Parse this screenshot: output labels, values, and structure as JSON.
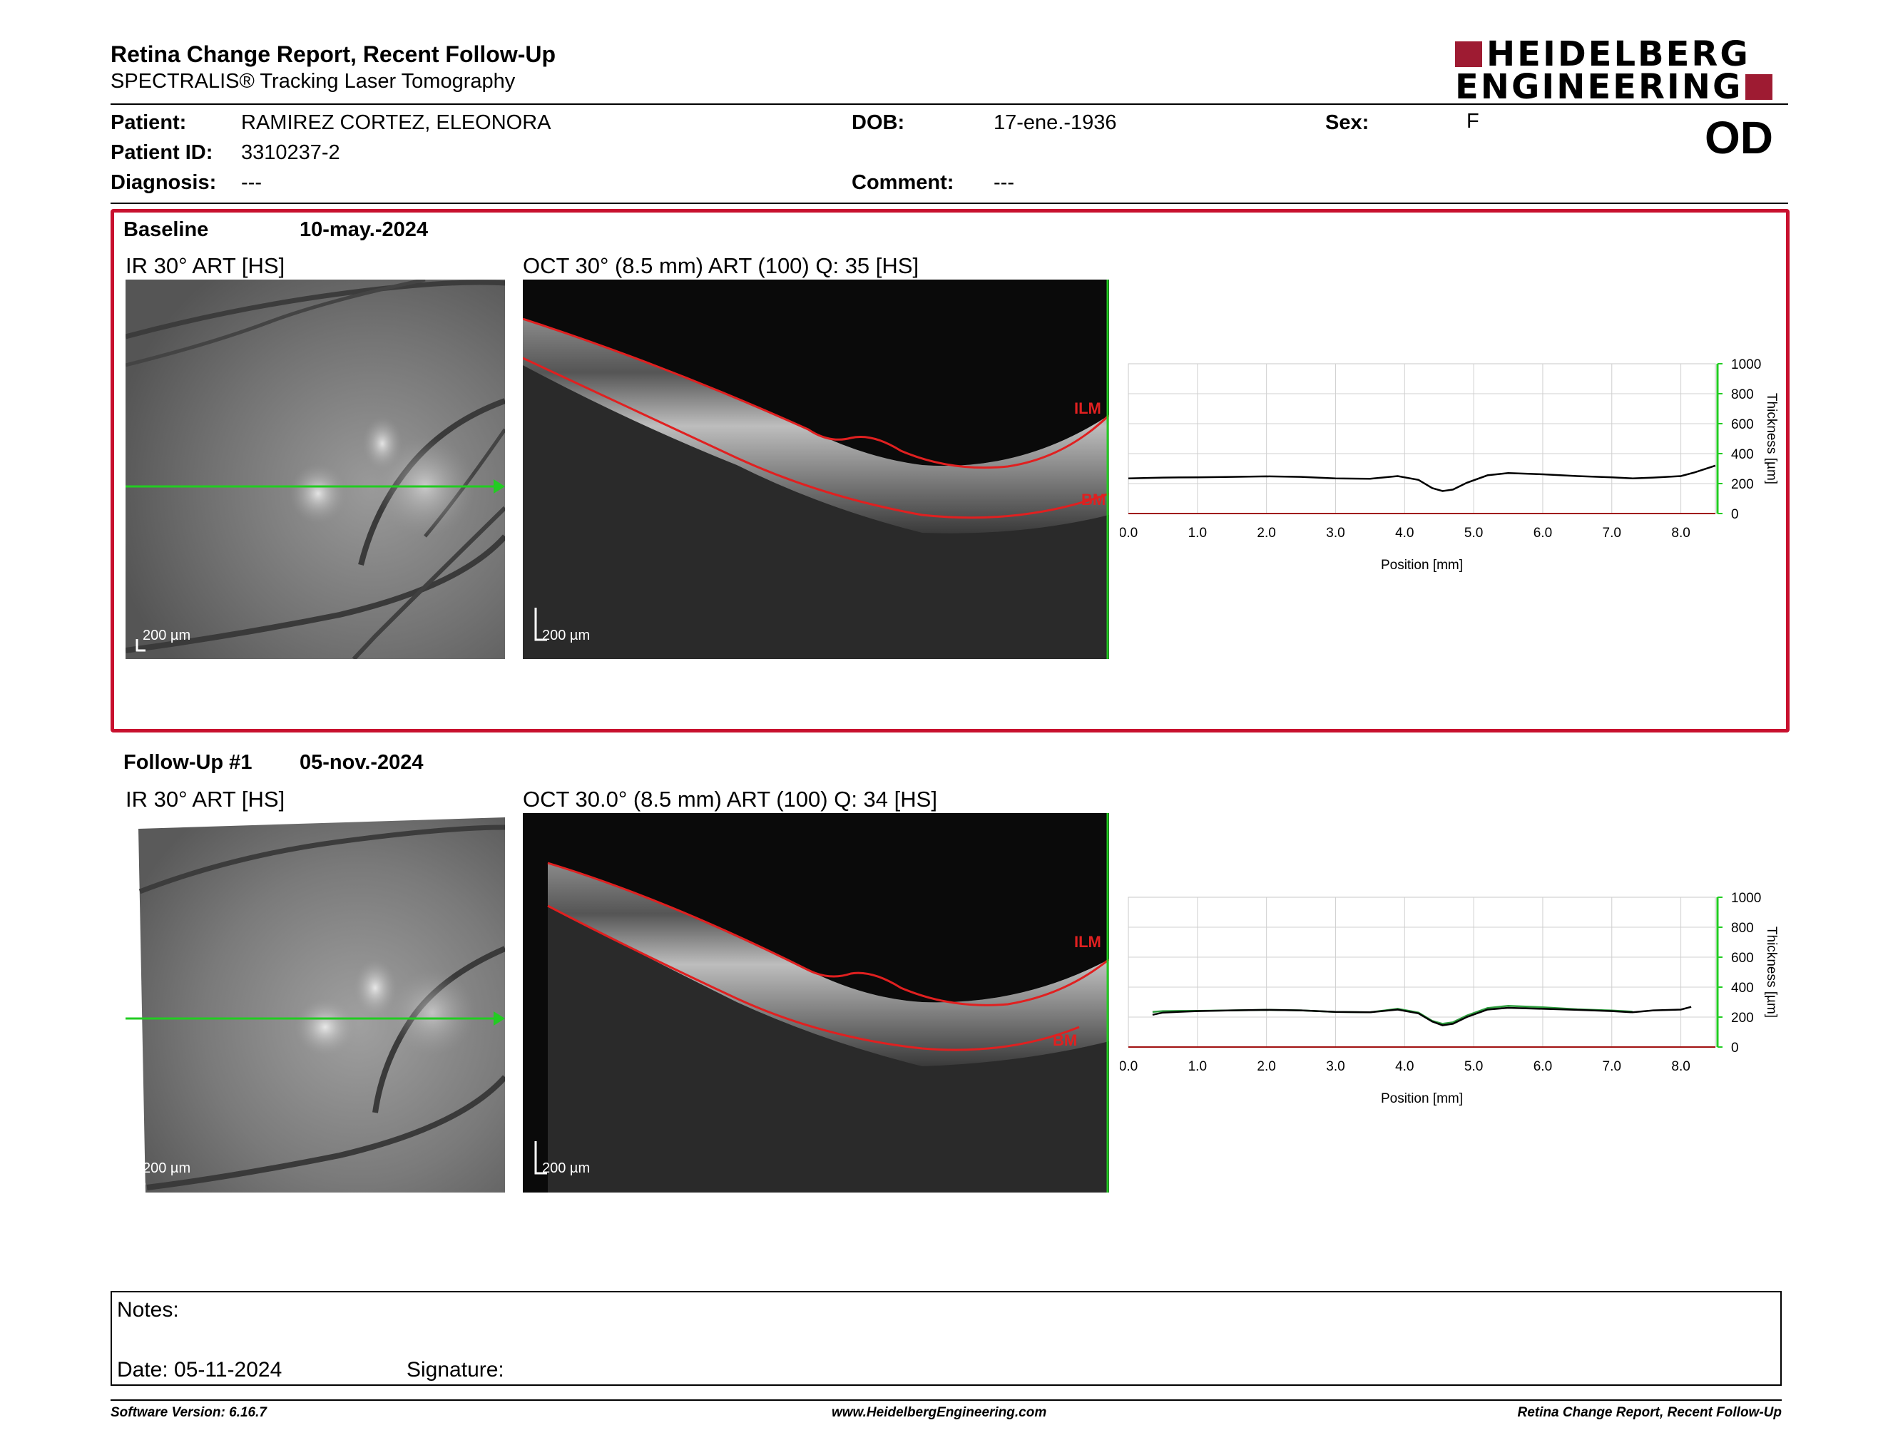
{
  "header": {
    "title": "Retina Change Report, Recent Follow-Up",
    "subtitle": "SPECTRALIS® Tracking Laser Tomography",
    "logo_line1": "HEIDELBERG",
    "logo_line2": "ENGINEERING",
    "eye": "OD"
  },
  "patient": {
    "patient_label": "Patient:",
    "patient_value": "RAMIREZ CORTEZ, ELEONORA",
    "id_label": "Patient ID:",
    "id_value": "3310237-2",
    "diagnosis_label": "Diagnosis:",
    "diagnosis_value": "---",
    "dob_label": "DOB:",
    "dob_value": "17-ene.-1936",
    "comment_label": "Comment:",
    "comment_value": "---",
    "sex_label": "Sex:",
    "sex_value": "F"
  },
  "baseline": {
    "label": "Baseline",
    "date": "10-may.-2024",
    "ir_label": "IR 30° ART [HS]",
    "oct_label": "OCT 30° (8.5 mm) ART (100) Q: 35 [HS]",
    "ir_scale": "200 µm",
    "oct_scale": "200 µm",
    "ilm": "ILM",
    "bm": "BM"
  },
  "followup": {
    "label": "Follow-Up #1",
    "date": "05-nov.-2024",
    "ir_label": "IR 30° ART [HS]",
    "oct_label": "OCT 30.0° (8.5 mm) ART (100) Q: 34 [HS]",
    "ir_scale": "200 µm",
    "oct_scale": "200 µm",
    "ilm": "ILM",
    "bm": "BM"
  },
  "chart_data": [
    {
      "type": "line",
      "xlabel": "Position [mm]",
      "ylabel": "Thickness [µm]",
      "xlim": [
        0,
        8.5
      ],
      "ylim": [
        0,
        1000
      ],
      "x_ticks": [
        "0.0",
        "1.0",
        "2.0",
        "3.0",
        "4.0",
        "5.0",
        "6.0",
        "7.0",
        "8.0"
      ],
      "y_ticks": [
        "0",
        "200",
        "400",
        "600",
        "800",
        "1000"
      ],
      "grid": true,
      "series": [
        {
          "color": "#000000",
          "x": [
            0,
            0.5,
            1,
            1.5,
            2,
            2.5,
            3,
            3.5,
            3.9,
            4.2,
            4.4,
            4.55,
            4.7,
            4.9,
            5.2,
            5.5,
            6,
            6.5,
            7,
            7.3,
            7.6,
            8,
            8.2,
            8.5
          ],
          "y": [
            235,
            240,
            242,
            245,
            248,
            245,
            235,
            232,
            250,
            225,
            170,
            150,
            160,
            205,
            255,
            270,
            262,
            250,
            242,
            235,
            240,
            250,
            275,
            320
          ]
        }
      ]
    },
    {
      "type": "line",
      "xlabel": "Position [mm]",
      "ylabel": "Thickness [µm]",
      "xlim": [
        0,
        8.5
      ],
      "ylim": [
        0,
        1000
      ],
      "x_ticks": [
        "0.0",
        "1.0",
        "2.0",
        "3.0",
        "4.0",
        "5.0",
        "6.0",
        "7.0",
        "8.0"
      ],
      "y_ticks": [
        "0",
        "200",
        "400",
        "600",
        "800",
        "1000"
      ],
      "grid": true,
      "series": [
        {
          "color": "#000000",
          "x": [
            0.35,
            0.5,
            1,
            1.5,
            2,
            2.5,
            3,
            3.5,
            3.9,
            4.2,
            4.4,
            4.55,
            4.7,
            4.9,
            5.2,
            5.5,
            6,
            6.5,
            7,
            7.3,
            7.6,
            8,
            8.15
          ],
          "y": [
            215,
            230,
            240,
            245,
            248,
            245,
            235,
            232,
            250,
            225,
            170,
            145,
            155,
            200,
            250,
            262,
            255,
            248,
            240,
            232,
            245,
            250,
            268
          ]
        },
        {
          "color": "#2e9e3e",
          "x": [
            0.35,
            0.5,
            1,
            1.5,
            2,
            2.5,
            3,
            3.5,
            3.9,
            4.2,
            4.4,
            4.55,
            4.7,
            4.9,
            5.2,
            5.5,
            6,
            6.5,
            7,
            7.3
          ],
          "y": [
            235,
            240,
            242,
            245,
            248,
            245,
            235,
            232,
            255,
            230,
            175,
            155,
            165,
            210,
            260,
            275,
            265,
            252,
            244,
            236
          ]
        }
      ]
    }
  ],
  "notes": {
    "notes_label": "Notes:",
    "date_label": "Date: 05-11-2024",
    "signature_label": "Signature:"
  },
  "footer": {
    "left": "Software Version: 6.16.7",
    "center": "www.HeidelbergEngineering.com",
    "right": "Retina Change Report, Recent Follow-Up"
  }
}
